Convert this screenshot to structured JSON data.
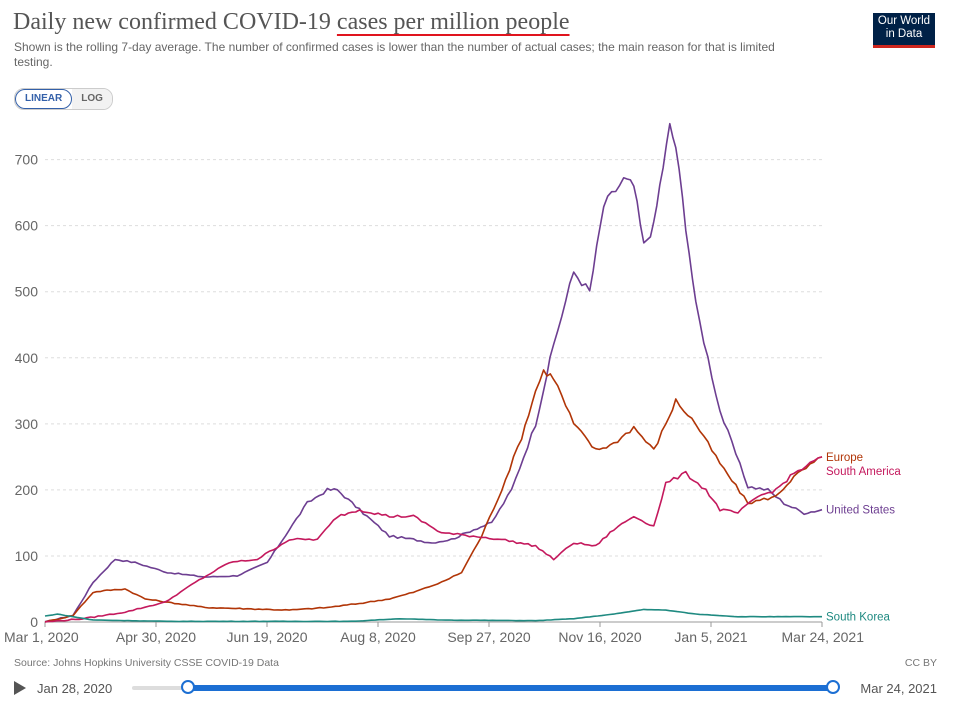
{
  "header": {
    "title_prefix": "Daily new confirmed COVID-19 ",
    "title_highlight": "cases per million people",
    "subtitle": "Shown is the rolling 7-day average. The number of confirmed cases is lower than the number of actual cases; the main reason for that is limited testing.",
    "logo_line1": "Our World",
    "logo_line2": "in Data"
  },
  "controls": {
    "linear_label": "LINEAR",
    "log_label": "LOG",
    "active": "linear"
  },
  "footer": {
    "source": "Source: Johns Hopkins University CSSE COVID-19 Data",
    "license": "CC BY",
    "timeline_start": "Jan 28, 2020",
    "timeline_end": "Mar 24, 2021"
  },
  "colors": {
    "Europe": "#b13507",
    "South America": "#c4195d",
    "United States": "#6d3e91",
    "South Korea": "#1f8a81",
    "grid": "#dddddd",
    "accent": "#1c6fd3"
  },
  "chart_data": {
    "type": "line",
    "title": "Daily new confirmed COVID-19 cases per million people",
    "ylim": [
      0,
      760
    ],
    "yticks": [
      0,
      100,
      200,
      300,
      400,
      500,
      600,
      700
    ],
    "xticks": [
      "Mar 1, 2020",
      "Apr 30, 2020",
      "Jun 19, 2020",
      "Aug 8, 2020",
      "Sep 27, 2020",
      "Nov 16, 2020",
      "Jan 5, 2021",
      "Mar 24, 2021"
    ],
    "x_range": [
      "2020-03-01",
      "2021-03-24"
    ],
    "grid": true,
    "legend": "right-end labels",
    "series": [
      {
        "name": "United States",
        "dates": [
          "2020-03-01",
          "2020-03-15",
          "2020-03-25",
          "2020-04-05",
          "2020-04-15",
          "2020-05-01",
          "2020-05-20",
          "2020-06-05",
          "2020-06-20",
          "2020-07-01",
          "2020-07-10",
          "2020-07-20",
          "2020-07-25",
          "2020-08-05",
          "2020-08-20",
          "2020-09-01",
          "2020-09-10",
          "2020-09-20",
          "2020-10-01",
          "2020-10-10",
          "2020-10-20",
          "2020-11-01",
          "2020-11-10",
          "2020-11-20",
          "2020-11-28",
          "2020-12-05",
          "2020-12-15",
          "2020-12-20",
          "2020-12-25",
          "2020-12-30",
          "2021-01-02",
          "2021-01-07",
          "2021-01-10",
          "2021-01-15",
          "2021-01-20",
          "2021-02-01",
          "2021-02-15",
          "2021-02-25",
          "2021-03-05",
          "2021-03-15",
          "2021-03-24"
        ],
        "values": [
          0,
          10,
          60,
          95,
          90,
          75,
          68,
          70,
          90,
          140,
          180,
          200,
          200,
          170,
          130,
          125,
          120,
          125,
          140,
          150,
          200,
          300,
          420,
          530,
          500,
          630,
          670,
          660,
          570,
          600,
          660,
          750,
          720,
          600,
          480,
          320,
          205,
          200,
          180,
          165,
          170
        ]
      },
      {
        "name": "Europe",
        "dates": [
          "2020-03-01",
          "2020-03-15",
          "2020-03-25",
          "2020-04-01",
          "2020-04-10",
          "2020-04-20",
          "2020-05-01",
          "2020-05-20",
          "2020-06-10",
          "2020-07-01",
          "2020-07-20",
          "2020-08-05",
          "2020-08-20",
          "2020-09-01",
          "2020-09-15",
          "2020-09-25",
          "2020-10-05",
          "2020-10-15",
          "2020-10-25",
          "2020-11-01",
          "2020-11-05",
          "2020-11-10",
          "2020-11-20",
          "2020-12-01",
          "2020-12-10",
          "2020-12-20",
          "2020-12-30",
          "2021-01-05",
          "2021-01-10",
          "2021-01-20",
          "2021-02-01",
          "2021-02-15",
          "2021-03-01",
          "2021-03-10",
          "2021-03-24"
        ],
        "values": [
          0,
          10,
          45,
          48,
          50,
          35,
          30,
          22,
          20,
          18,
          22,
          28,
          35,
          45,
          60,
          75,
          130,
          200,
          280,
          350,
          380,
          370,
          300,
          260,
          270,
          295,
          260,
          300,
          335,
          300,
          240,
          180,
          190,
          220,
          250
        ]
      },
      {
        "name": "South America",
        "dates": [
          "2020-03-01",
          "2020-03-20",
          "2020-04-10",
          "2020-04-30",
          "2020-05-15",
          "2020-06-01",
          "2020-06-15",
          "2020-07-01",
          "2020-07-15",
          "2020-07-25",
          "2020-08-05",
          "2020-08-20",
          "2020-09-01",
          "2020-09-15",
          "2020-10-01",
          "2020-10-15",
          "2020-11-01",
          "2020-11-10",
          "2020-11-20",
          "2020-12-01",
          "2020-12-10",
          "2020-12-20",
          "2020-12-30",
          "2021-01-05",
          "2021-01-15",
          "2021-01-25",
          "2021-02-01",
          "2021-02-10",
          "2021-02-20",
          "2021-03-01",
          "2021-03-10",
          "2021-03-24"
        ],
        "values": [
          0,
          5,
          15,
          30,
          60,
          90,
          95,
          125,
          125,
          160,
          170,
          160,
          160,
          135,
          130,
          125,
          115,
          95,
          120,
          115,
          140,
          160,
          145,
          210,
          225,
          200,
          170,
          165,
          190,
          200,
          225,
          250
        ]
      },
      {
        "name": "South Korea",
        "dates": [
          "2020-03-01",
          "2020-03-07",
          "2020-03-25",
          "2020-05-01",
          "2020-08-01",
          "2020-08-25",
          "2020-09-15",
          "2020-11-01",
          "2020-11-20",
          "2020-12-10",
          "2020-12-25",
          "2021-01-05",
          "2021-01-20",
          "2021-02-10",
          "2021-03-24"
        ],
        "values": [
          9,
          12,
          3,
          1,
          1,
          5,
          3,
          2,
          5,
          12,
          19,
          18,
          12,
          8,
          8
        ]
      }
    ]
  }
}
